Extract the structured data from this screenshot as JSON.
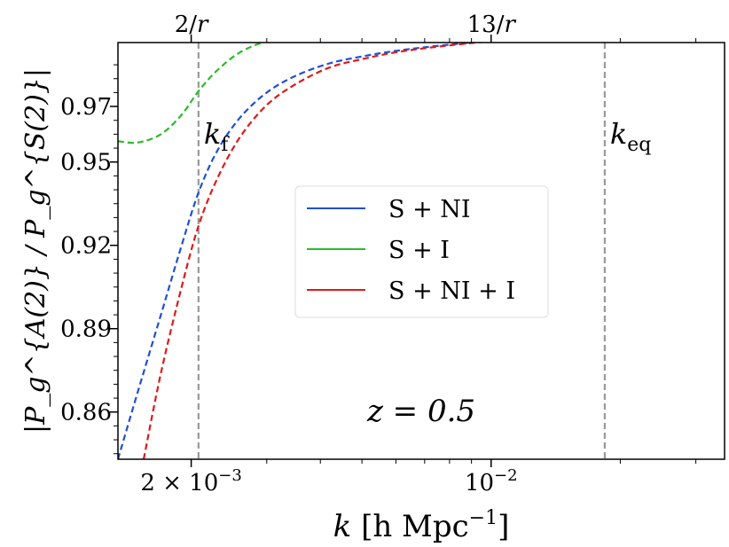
{
  "chart_data": {
    "type": "line",
    "xscale": "log",
    "xlim": [
      0.00135,
      0.035
    ],
    "ylim": [
      0.843,
      0.993
    ],
    "xticks": [
      {
        "value": 0.002,
        "base": "2 × 10",
        "exp": "−3"
      },
      {
        "value": 0.01,
        "base": "10",
        "exp": "−2"
      }
    ],
    "yticks": [
      {
        "value": 0.97,
        "label": "0.97"
      },
      {
        "value": 0.95,
        "label": "0.95"
      },
      {
        "value": 0.92,
        "label": "0.92"
      },
      {
        "value": 0.89,
        "label": "0.89"
      },
      {
        "value": 0.86,
        "label": "0.86"
      }
    ],
    "top_ticks": [
      {
        "value": 0.002,
        "num": "2/",
        "var": "r"
      },
      {
        "value": 0.01,
        "num": "13/",
        "var": "r"
      }
    ],
    "xlabel": {
      "var": "k",
      "units": "[h Mpc",
      "exp": "−1",
      "close": "]"
    },
    "ylabel": {
      "text": "|P_g^{A(2)} / P_g^{S(2)}|"
    },
    "reference_line": {
      "y": 0.9985,
      "color": "#000000",
      "style": "dashed"
    },
    "vlines": [
      {
        "x": 0.00208,
        "label": "k",
        "sub": "f",
        "color": "#999999"
      },
      {
        "x": 0.0184,
        "label": "k",
        "sub": "eq",
        "color": "#999999"
      }
    ],
    "annotation": {
      "text": "z = 0.5",
      "color": "#999999"
    },
    "legend": {
      "placement": "center-right"
    },
    "series": [
      {
        "name": "S  +  NI",
        "color": "#1f4fd6",
        "style": "dashed",
        "x": [
          0.00135,
          0.0015,
          0.0017,
          0.0019,
          0.00208,
          0.0023,
          0.0026,
          0.003,
          0.0035,
          0.0042,
          0.005,
          0.006,
          0.0075,
          0.01,
          0.013,
          0.0184,
          0.025,
          0.035
        ],
        "y": [
          0.843,
          0.867,
          0.895,
          0.92,
          0.939,
          0.954,
          0.966,
          0.975,
          0.981,
          0.9855,
          0.988,
          0.99,
          0.9918,
          0.9937,
          0.9952,
          0.9963,
          0.9972,
          0.998
        ]
      },
      {
        "name": "S  +  I",
        "color": "#2bbb2b",
        "style": "dashed",
        "x": [
          0.00135,
          0.0015,
          0.0017,
          0.0019,
          0.00208,
          0.0023,
          0.0026,
          0.003,
          0.0035,
          0.0042,
          0.005,
          0.006,
          0.0075,
          0.01,
          0.013,
          0.0184,
          0.025,
          0.035
        ],
        "y": [
          0.9575,
          0.957,
          0.96,
          0.967,
          0.9755,
          0.983,
          0.9895,
          0.9935,
          0.9955,
          0.9968,
          0.9975,
          0.998,
          0.9982,
          0.9983,
          0.9984,
          0.9984,
          0.9984,
          0.9984
        ]
      },
      {
        "name": "S  +  NI +  I",
        "color": "#e01919",
        "style": "dashed",
        "x": [
          0.00155,
          0.0017,
          0.0019,
          0.00208,
          0.0023,
          0.0026,
          0.003,
          0.0035,
          0.0042,
          0.005,
          0.006,
          0.0075,
          0.01,
          0.013,
          0.0184,
          0.025,
          0.035
        ],
        "y": [
          0.843,
          0.874,
          0.905,
          0.927,
          0.944,
          0.959,
          0.9705,
          0.978,
          0.984,
          0.987,
          0.9895,
          0.9915,
          0.9935,
          0.995,
          0.9963,
          0.9972,
          0.998
        ]
      }
    ]
  }
}
